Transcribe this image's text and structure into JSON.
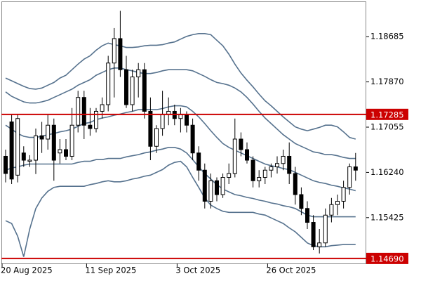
{
  "chart_data": {
    "type": "candlestick",
    "categories": [
      "20 Aug 2025",
      null,
      null,
      null,
      null,
      null,
      null,
      null,
      null,
      null,
      null,
      null,
      null,
      null,
      "11 Sep 2025",
      null,
      null,
      null,
      null,
      null,
      null,
      null,
      null,
      null,
      null,
      null,
      null,
      null,
      null,
      "3 Oct 2025",
      null,
      null,
      null,
      null,
      null,
      null,
      null,
      null,
      null,
      null,
      null,
      null,
      null,
      null,
      "26 Oct 2025",
      null,
      null,
      null,
      null,
      null,
      null,
      null,
      null,
      null,
      null,
      null,
      null,
      null,
      null
    ],
    "open": [
      1.1653,
      1.1715,
      1.1619,
      1.1659,
      1.1644,
      1.1646,
      1.169,
      1.1684,
      1.1709,
      1.1659,
      1.1665,
      1.1653,
      1.1709,
      1.1759,
      1.1709,
      1.1703,
      1.1734,
      1.1746,
      1.1821,
      1.1865,
      1.1809,
      1.1746,
      1.1796,
      1.1809,
      1.1734,
      1.1671,
      1.1703,
      1.1728,
      1.1734,
      1.1721,
      1.1728,
      1.1709,
      1.1659,
      1.1628,
      1.1572,
      1.1609,
      1.1584,
      1.1615,
      1.1622,
      1.1684,
      1.1665,
      1.1646,
      1.1609,
      1.1615,
      1.1628,
      1.1634,
      1.164,
      1.1653,
      1.1622,
      1.1584,
      1.1559,
      1.1534,
      1.149,
      1.1497,
      1.1547,
      1.1566,
      1.1572,
      1.1597,
      1.1634
    ],
    "high": [
      1.1665,
      1.1728,
      1.1728,
      1.1671,
      1.1655,
      1.1703,
      1.1715,
      1.1728,
      1.1721,
      1.1684,
      1.1684,
      1.174,
      1.1771,
      1.1771,
      1.174,
      1.174,
      1.1759,
      1.1834,
      1.1884,
      1.1915,
      1.1834,
      1.1809,
      1.1821,
      1.1821,
      1.1759,
      1.1709,
      1.1771,
      1.1759,
      1.1746,
      1.174,
      1.1734,
      1.1721,
      1.1671,
      1.164,
      1.1622,
      1.1615,
      1.1622,
      1.164,
      1.1721,
      1.1696,
      1.1678,
      1.1653,
      1.1628,
      1.1634,
      1.164,
      1.1653,
      1.1665,
      1.1678,
      1.1634,
      1.1597,
      1.1572,
      1.1547,
      1.1522,
      1.1559,
      1.1578,
      1.1584,
      1.1609,
      1.164,
      1.1659
    ],
    "low": [
      1.1606,
      1.1603,
      1.1606,
      1.1634,
      1.1634,
      1.1621,
      1.1659,
      1.1665,
      1.1609,
      1.164,
      1.1646,
      1.1646,
      1.1696,
      1.1684,
      1.169,
      1.1696,
      1.1721,
      1.1734,
      1.1759,
      1.1796,
      1.174,
      1.1734,
      1.1759,
      1.1721,
      1.1646,
      1.1659,
      1.169,
      1.1709,
      1.1709,
      1.1696,
      1.1696,
      1.1646,
      1.1609,
      1.1559,
      1.1559,
      1.1572,
      1.1578,
      1.1603,
      1.1615,
      1.1653,
      1.164,
      1.1597,
      1.1597,
      1.1603,
      1.1615,
      1.1622,
      1.1628,
      1.1603,
      1.1566,
      1.1547,
      1.1522,
      1.1484,
      1.1478,
      1.149,
      1.1534,
      1.1547,
      1.1559,
      1.1584,
      1.1609
    ],
    "close": [
      1.1622,
      1.1612,
      1.1721,
      1.1646,
      1.1646,
      1.169,
      1.1684,
      1.1709,
      1.1646,
      1.1665,
      1.1653,
      1.1709,
      1.1759,
      1.1709,
      1.1703,
      1.1734,
      1.1746,
      1.1821,
      1.1865,
      1.1809,
      1.1746,
      1.1796,
      1.1809,
      1.1734,
      1.1671,
      1.1703,
      1.1728,
      1.1734,
      1.1721,
      1.1728,
      1.1709,
      1.1659,
      1.1628,
      1.1572,
      1.1609,
      1.1584,
      1.1615,
      1.1622,
      1.1684,
      1.1665,
      1.1646,
      1.1609,
      1.1615,
      1.1628,
      1.1634,
      1.164,
      1.1653,
      1.1622,
      1.1584,
      1.1559,
      1.1534,
      1.149,
      1.1497,
      1.1547,
      1.1566,
      1.1572,
      1.1597,
      1.1634,
      1.1628
    ],
    "bands": [
      {
        "color": "#56728e",
        "values": [
          1.1794,
          1.1789,
          1.1784,
          1.1779,
          1.1775,
          1.1774,
          1.1776,
          1.1781,
          1.1786,
          1.1794,
          1.1799,
          1.1809,
          1.1819,
          1.1828,
          1.1834,
          1.1844,
          1.1852,
          1.1857,
          1.1854,
          1.1852,
          1.1849,
          1.1849,
          1.185,
          1.1852,
          1.1853,
          1.1853,
          1.1854,
          1.1857,
          1.1859,
          1.1864,
          1.1869,
          1.1872,
          1.1874,
          1.1874,
          1.1872,
          1.1862,
          1.1852,
          1.1837,
          1.1819,
          1.1803,
          1.179,
          1.1778,
          1.1765,
          1.1753,
          1.1744,
          1.1734,
          1.1724,
          1.1715,
          1.1706,
          1.1702,
          1.1699,
          1.1702,
          1.1705,
          1.1709,
          1.1709,
          1.1706,
          1.1697,
          1.1687,
          1.1684
        ]
      },
      {
        "color": "#56728e",
        "values": [
          1.1769,
          1.1761,
          1.1756,
          1.1751,
          1.1749,
          1.1749,
          1.1751,
          1.1754,
          1.1759,
          1.1764,
          1.1769,
          1.1774,
          1.1781,
          1.1786,
          1.1791,
          1.1799,
          1.1804,
          1.1809,
          1.1812,
          1.1812,
          1.1809,
          1.1807,
          1.1804,
          1.1802,
          1.1802,
          1.1804,
          1.1807,
          1.1809,
          1.1809,
          1.1809,
          1.1809,
          1.1807,
          1.1802,
          1.1797,
          1.1791,
          1.1786,
          1.1784,
          1.1781,
          1.1776,
          1.1769,
          1.1759,
          1.1747,
          1.1734,
          1.1722,
          1.1712,
          1.1702,
          1.1692,
          1.1684,
          1.1676,
          1.1671,
          1.1666,
          1.1661,
          1.1659,
          1.1656,
          1.1656,
          1.1654,
          1.1651,
          1.1649,
          1.1649
        ]
      },
      {
        "color": "#56728e",
        "values": [
          1.1709,
          1.1702,
          1.1694,
          1.1689,
          1.1687,
          1.1687,
          1.1689,
          1.1692,
          1.1694,
          1.1697,
          1.1699,
          1.1702,
          1.1707,
          1.1712,
          1.1714,
          1.1719,
          1.1722,
          1.1724,
          1.1727,
          1.1729,
          1.1732,
          1.1734,
          1.1737,
          1.1737,
          1.1737,
          1.1737,
          1.1739,
          1.1742,
          1.1744,
          1.1744,
          1.1742,
          1.1734,
          1.1724,
          1.1712,
          1.1699,
          1.1687,
          1.1676,
          1.1669,
          1.1664,
          1.1659,
          1.1654,
          1.1649,
          1.1644,
          1.1639,
          1.1636,
          1.1634,
          1.1631,
          1.1629,
          1.1624,
          1.1619,
          1.1614,
          1.1609,
          1.1606,
          1.1604,
          1.1601,
          1.1599,
          1.1596,
          1.1594,
          1.1591
        ]
      },
      {
        "color": "#56728e",
        "values": [
          1.1628,
          1.1632,
          1.1634,
          1.1637,
          1.1639,
          1.1639,
          1.1639,
          1.1639,
          1.1639,
          1.1639,
          1.1639,
          1.1639,
          1.1642,
          1.1644,
          1.1644,
          1.1647,
          1.1647,
          1.1649,
          1.1649,
          1.1649,
          1.1652,
          1.1654,
          1.1656,
          1.1659,
          1.1661,
          1.1664,
          1.1666,
          1.1669,
          1.1669,
          1.1666,
          1.1659,
          1.1647,
          1.1634,
          1.1622,
          1.1612,
          1.1602,
          1.1594,
          1.1589,
          1.1584,
          1.1582,
          1.1579,
          1.1577,
          1.1574,
          1.1572,
          1.1569,
          1.1567,
          1.1564,
          1.1562,
          1.1559,
          1.1553,
          1.1547,
          1.1544,
          1.1544,
          1.1544,
          1.1544,
          1.1544,
          1.1544,
          1.1544,
          1.1544
        ]
      },
      {
        "color": "#56728e",
        "values": [
          1.1537,
          1.1532,
          1.1509,
          1.1472,
          1.1522,
          1.1559,
          1.1578,
          1.159,
          1.1597,
          1.1599,
          1.1599,
          1.1599,
          1.1599,
          1.1599,
          1.1602,
          1.1604,
          1.1607,
          1.1609,
          1.1607,
          1.1607,
          1.1609,
          1.1612,
          1.1614,
          1.1617,
          1.1619,
          1.1624,
          1.1629,
          1.1637,
          1.1642,
          1.1644,
          1.1634,
          1.1615,
          1.1597,
          1.1578,
          1.1565,
          1.1559,
          1.1554,
          1.1552,
          1.1552,
          1.1552,
          1.1552,
          1.1552,
          1.1549,
          1.1547,
          1.1542,
          1.1537,
          1.1532,
          1.1524,
          1.1517,
          1.1507,
          1.1497,
          1.1492,
          1.149,
          1.149,
          1.1492,
          1.1493,
          1.1494,
          1.1494,
          1.1494
        ]
      }
    ],
    "hlines": [
      {
        "value": 1.17285,
        "color": "#cc0000"
      },
      {
        "value": 1.1469,
        "label": "1.14690",
        "color": "#cc0000"
      }
    ],
    "ylim": [
      1.146,
      1.1932
    ],
    "yticks": [
      1.18685,
      {
        "value": 1.1787,
        "label": "1.17870"
      },
      1.17055,
      {
        "value": 1.1624,
        "label": "1.16240"
      },
      1.15425
    ],
    "bull_color": "#ffffff",
    "bear_color": "#000000"
  }
}
